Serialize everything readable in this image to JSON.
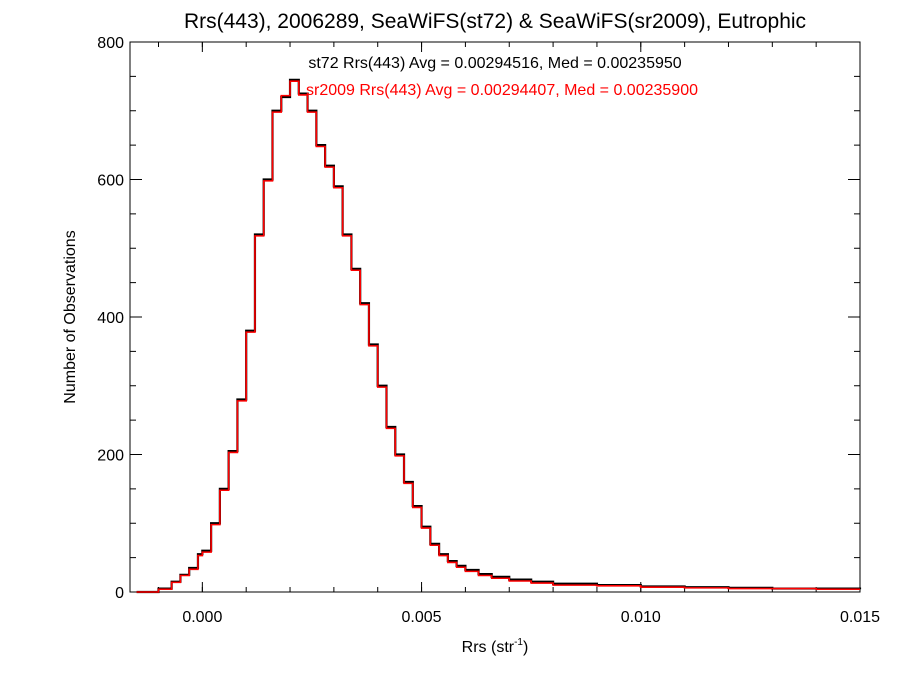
{
  "chart_data": {
    "type": "histogram-step",
    "title": "Rrs(443), 2006289, SeaWiFS(st72) & SeaWiFS(sr2009), Eutrophic",
    "xlabel": "Rrs (str",
    "xlabel_superscript": "-1",
    "xlabel_suffix": ")",
    "ylabel": "Number of Observations",
    "xlim": [
      -0.00165,
      0.015
    ],
    "ylim": [
      0,
      800
    ],
    "xticks": [
      0.0,
      0.005,
      0.01,
      0.015
    ],
    "xtick_labels": [
      "0.000",
      "0.005",
      "0.010",
      "0.015"
    ],
    "yticks": [
      0,
      200,
      400,
      600,
      800
    ],
    "ytick_labels": [
      "0",
      "200",
      "400",
      "600",
      "800"
    ],
    "annotations": [
      {
        "text": "st72 Rrs(443) Avg = 0.00294516, Med = 0.00235950",
        "color": "#000000"
      },
      {
        "text": "sr2009 Rrs(443) Avg = 0.00294407, Med = 0.00235900",
        "color": "#ff0000"
      }
    ],
    "series": [
      {
        "color": "#000000",
        "x": [
          -0.0015,
          -0.001,
          -0.0007,
          -0.0005,
          -0.0003,
          -0.0001,
          0.0,
          0.0002,
          0.0004,
          0.0006,
          0.0008,
          0.001,
          0.0012,
          0.0014,
          0.0016,
          0.0018,
          0.002,
          0.0022,
          0.0024,
          0.0026,
          0.0028,
          0.003,
          0.0032,
          0.0034,
          0.0036,
          0.0038,
          0.004,
          0.0042,
          0.0044,
          0.0046,
          0.0048,
          0.005,
          0.0052,
          0.0054,
          0.0056,
          0.0058,
          0.006,
          0.0063,
          0.0066,
          0.007,
          0.0075,
          0.008,
          0.009,
          0.01,
          0.011,
          0.012,
          0.013,
          0.014,
          0.015
        ],
        "y": [
          0,
          5,
          15,
          25,
          35,
          55,
          60,
          100,
          150,
          205,
          280,
          380,
          520,
          600,
          700,
          720,
          745,
          725,
          700,
          650,
          620,
          590,
          520,
          470,
          420,
          360,
          300,
          240,
          200,
          160,
          125,
          95,
          70,
          55,
          45,
          38,
          32,
          26,
          22,
          18,
          15,
          12,
          10,
          8,
          7,
          6,
          5,
          5,
          4
        ]
      },
      {
        "color": "#ff0000",
        "x": [
          -0.0015,
          -0.001,
          -0.0007,
          -0.0005,
          -0.0003,
          -0.0001,
          0.0,
          0.0002,
          0.0004,
          0.0006,
          0.0008,
          0.001,
          0.0012,
          0.0014,
          0.0016,
          0.0018,
          0.002,
          0.0022,
          0.0024,
          0.0026,
          0.0028,
          0.003,
          0.0032,
          0.0034,
          0.0036,
          0.0038,
          0.004,
          0.0042,
          0.0044,
          0.0046,
          0.0048,
          0.005,
          0.0052,
          0.0054,
          0.0056,
          0.0058,
          0.006,
          0.0063,
          0.0066,
          0.007,
          0.0075,
          0.008,
          0.009,
          0.01,
          0.011,
          0.012,
          0.013,
          0.014,
          0.015
        ],
        "y": [
          0,
          4,
          14,
          24,
          33,
          53,
          58,
          98,
          148,
          203,
          278,
          378,
          518,
          598,
          698,
          722,
          743,
          723,
          698,
          648,
          618,
          588,
          518,
          468,
          418,
          358,
          298,
          238,
          198,
          158,
          123,
          93,
          68,
          53,
          43,
          36,
          30,
          24,
          20,
          16,
          13,
          10,
          9,
          7,
          6,
          5,
          5,
          4,
          4
        ]
      }
    ]
  }
}
